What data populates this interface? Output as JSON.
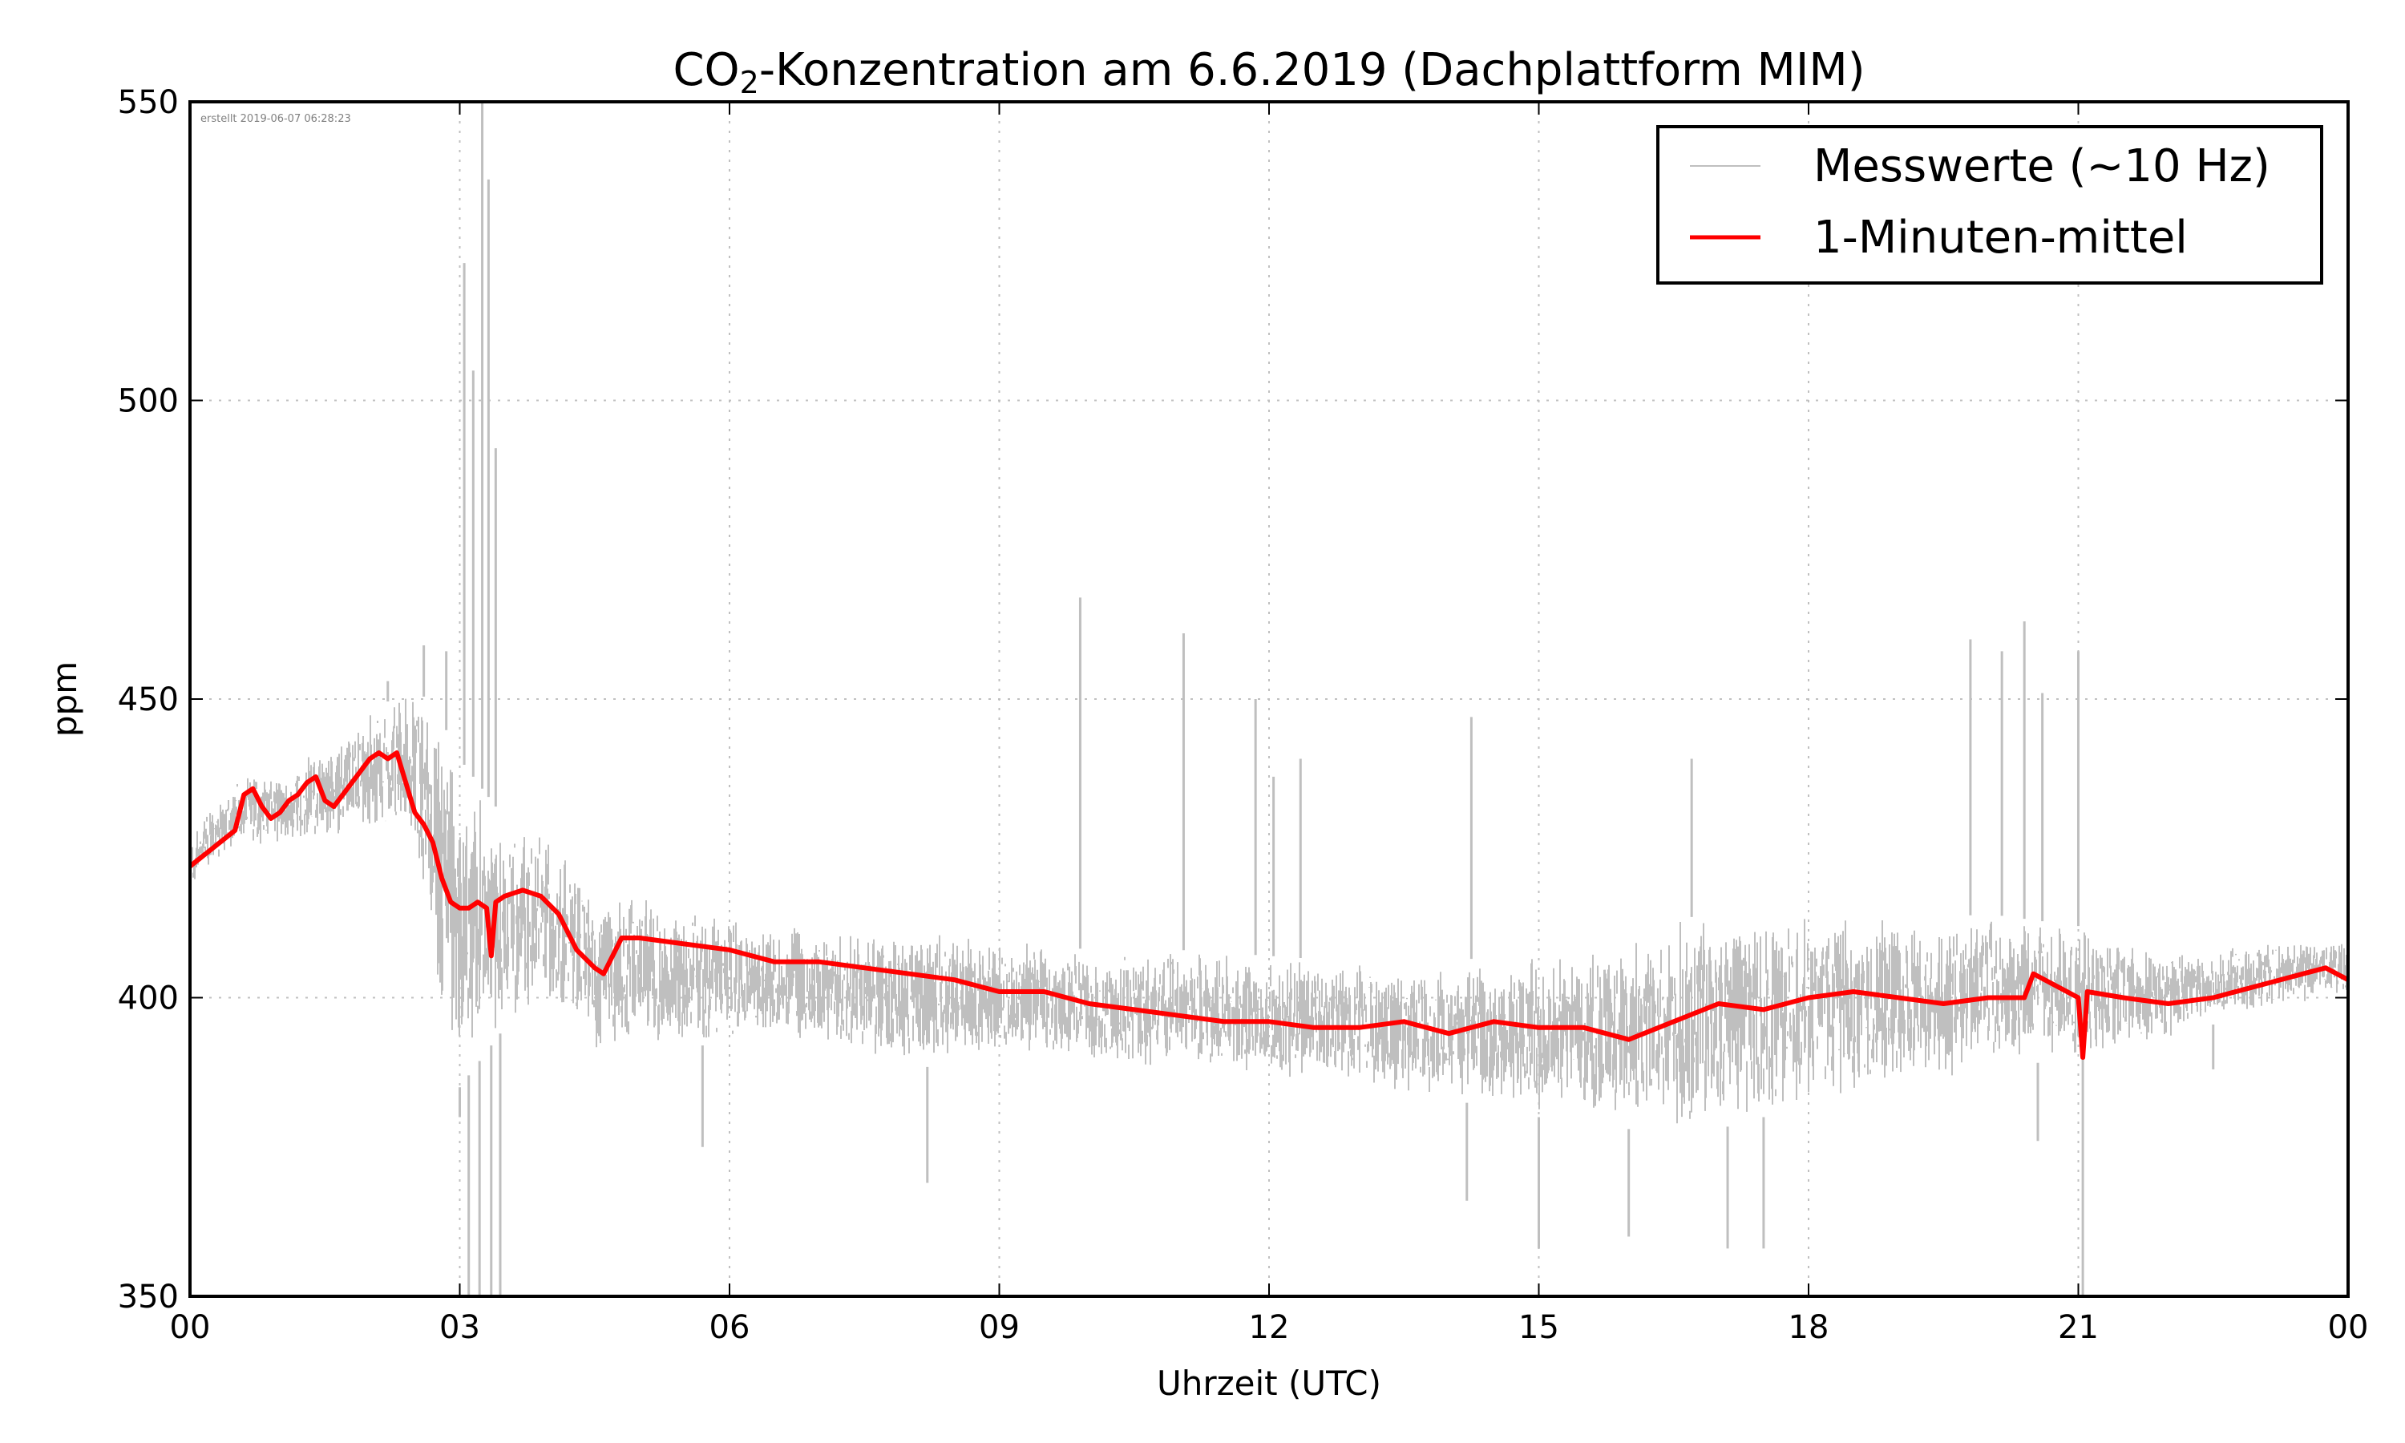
{
  "chart_data": {
    "type": "line",
    "title_main": "CO",
    "title_sub": "2",
    "title_rest": "-Konzentration am 6.6.2019 (Dachplattform MIM)",
    "xlabel": "Uhrzeit (UTC)",
    "ylabel": "ppm",
    "xlim": [
      0,
      24
    ],
    "ylim": [
      350,
      550
    ],
    "xticks": [
      0,
      3,
      6,
      9,
      12,
      15,
      18,
      21,
      24
    ],
    "xtick_labels": [
      "00",
      "03",
      "06",
      "09",
      "12",
      "15",
      "18",
      "21",
      "00"
    ],
    "yticks": [
      350,
      400,
      450,
      500,
      550
    ],
    "ytick_labels": [
      "350",
      "400",
      "450",
      "500",
      "550"
    ],
    "grid": true,
    "legend_position": "top-right",
    "annotation": "erstellt 2019-06-07 06:28:23",
    "series": [
      {
        "name": "Messwerte (~10 Hz)",
        "color": "#bfbfbf",
        "envelope_hours": [
          0,
          0.5,
          1,
          1.5,
          2,
          2.5,
          2.75,
          3,
          3.5,
          4,
          4.5,
          5,
          6,
          7,
          8,
          9,
          10,
          11,
          12,
          13,
          14,
          15,
          16,
          17,
          18,
          19,
          20,
          21,
          22,
          23,
          24
        ],
        "envelope_low": [
          418,
          425,
          425,
          426,
          428,
          425,
          400,
          385,
          395,
          398,
          390,
          392,
          392,
          392,
          388,
          390,
          388,
          388,
          386,
          385,
          383,
          380,
          378,
          378,
          382,
          385,
          388,
          390,
          393,
          398,
          400
        ],
        "envelope_high": [
          428,
          437,
          438,
          442,
          448,
          452,
          448,
          440,
          430,
          428,
          418,
          418,
          414,
          412,
          412,
          410,
          408,
          408,
          407,
          406,
          406,
          408,
          410,
          415,
          414,
          413,
          414,
          412,
          408,
          410,
          410
        ],
        "spikes": [
          {
            "x": 2.2,
            "y": 453
          },
          {
            "x": 2.6,
            "y": 459
          },
          {
            "x": 2.85,
            "y": 458
          },
          {
            "x": 3.05,
            "y": 523
          },
          {
            "x": 3.15,
            "y": 505
          },
          {
            "x": 3.25,
            "y": 550
          },
          {
            "x": 3.32,
            "y": 537
          },
          {
            "x": 3.4,
            "y": 492
          },
          {
            "x": 3.1,
            "y": 350
          },
          {
            "x": 3.22,
            "y": 350
          },
          {
            "x": 3.35,
            "y": 350
          },
          {
            "x": 3.45,
            "y": 350
          },
          {
            "x": 3.0,
            "y": 380
          },
          {
            "x": 5.7,
            "y": 375
          },
          {
            "x": 8.2,
            "y": 369
          },
          {
            "x": 9.9,
            "y": 467
          },
          {
            "x": 11.05,
            "y": 461
          },
          {
            "x": 11.85,
            "y": 450
          },
          {
            "x": 12.05,
            "y": 437
          },
          {
            "x": 12.35,
            "y": 440
          },
          {
            "x": 14.2,
            "y": 366
          },
          {
            "x": 14.25,
            "y": 447
          },
          {
            "x": 15.0,
            "y": 358
          },
          {
            "x": 16.0,
            "y": 360
          },
          {
            "x": 16.7,
            "y": 440
          },
          {
            "x": 17.1,
            "y": 358
          },
          {
            "x": 17.5,
            "y": 358
          },
          {
            "x": 19.8,
            "y": 460
          },
          {
            "x": 20.15,
            "y": 458
          },
          {
            "x": 20.4,
            "y": 463
          },
          {
            "x": 20.55,
            "y": 376
          },
          {
            "x": 20.6,
            "y": 451
          },
          {
            "x": 21.0,
            "y": 458
          },
          {
            "x": 21.05,
            "y": 350
          },
          {
            "x": 22.5,
            "y": 388
          }
        ]
      },
      {
        "name": "1-Minuten-mittel",
        "color": "#ff0000",
        "x": [
          0,
          0.25,
          0.5,
          0.6,
          0.7,
          0.8,
          0.9,
          1.0,
          1.1,
          1.2,
          1.3,
          1.4,
          1.5,
          1.6,
          1.7,
          1.8,
          1.9,
          2.0,
          2.1,
          2.2,
          2.3,
          2.4,
          2.5,
          2.6,
          2.7,
          2.8,
          2.9,
          3.0,
          3.1,
          3.2,
          3.3,
          3.35,
          3.4,
          3.5,
          3.7,
          3.9,
          4.1,
          4.3,
          4.5,
          4.6,
          4.7,
          4.8,
          5.0,
          5.5,
          6.0,
          6.5,
          7.0,
          7.5,
          8.0,
          8.5,
          9.0,
          9.5,
          10.0,
          10.5,
          11.0,
          11.5,
          12.0,
          12.5,
          13.0,
          13.5,
          14.0,
          14.5,
          15.0,
          15.5,
          16.0,
          16.5,
          17.0,
          17.5,
          18.0,
          18.5,
          19.0,
          19.5,
          20.0,
          20.4,
          20.5,
          21.0,
          21.05,
          21.1,
          21.5,
          22.0,
          22.5,
          23.0,
          23.5,
          23.75,
          24.0
        ],
        "y": [
          422,
          425,
          428,
          434,
          435,
          432,
          430,
          431,
          433,
          434,
          436,
          437,
          433,
          432,
          434,
          436,
          438,
          440,
          441,
          440,
          441,
          436,
          431,
          429,
          426,
          420,
          416,
          415,
          415,
          416,
          415,
          407,
          416,
          417,
          418,
          417,
          414,
          408,
          405,
          404,
          407,
          410,
          410,
          409,
          408,
          406,
          406,
          405,
          404,
          403,
          401,
          401,
          399,
          398,
          397,
          396,
          396,
          395,
          395,
          396,
          394,
          396,
          395,
          395,
          393,
          396,
          399,
          398,
          400,
          401,
          400,
          399,
          400,
          400,
          404,
          400,
          390,
          401,
          400,
          399,
          400,
          402,
          404,
          405,
          403
        ]
      }
    ]
  }
}
